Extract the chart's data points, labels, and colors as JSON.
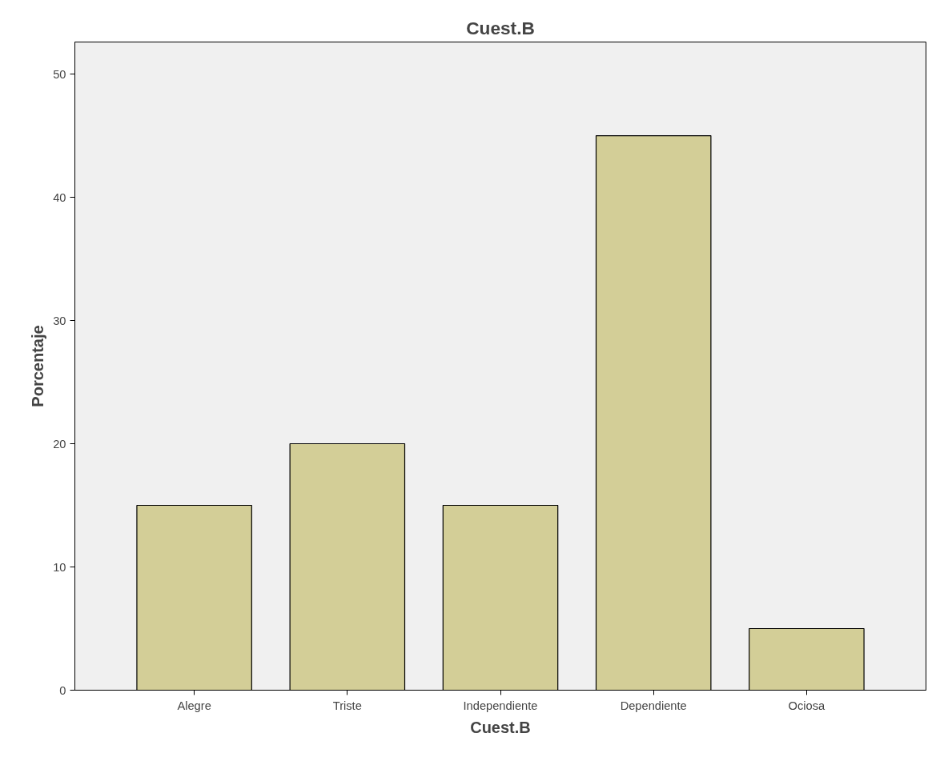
{
  "chart_data": {
    "type": "bar",
    "title": "Cuest.B",
    "xlabel": "Cuest.B",
    "ylabel": "Porcentaje",
    "categories": [
      "Alegre",
      "Triste",
      "Independiente",
      "Dependiente",
      "Ociosa"
    ],
    "values": [
      15,
      20,
      15,
      45,
      5
    ],
    "color": "#d3ce97",
    "ylim": [
      0,
      52.6
    ],
    "yticks": [
      0,
      10,
      20,
      30,
      40,
      50
    ],
    "grid": false
  }
}
